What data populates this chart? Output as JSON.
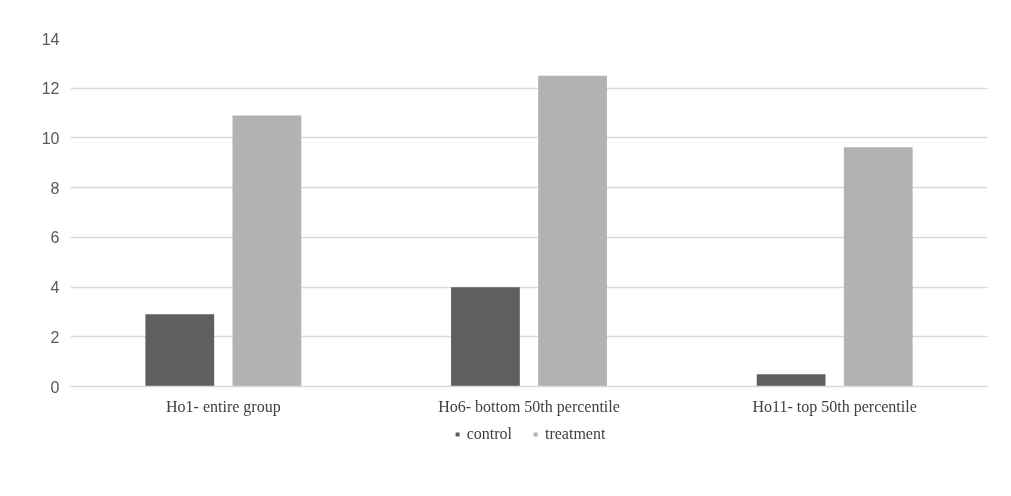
{
  "chart_data": {
    "type": "bar",
    "categories": [
      "Ho1- entire group",
      "Ho6- bottom 50th percentile",
      "Ho11- top 50th percentile"
    ],
    "series": [
      {
        "name": "control",
        "color": "#5f5f5f",
        "values": [
          2.91,
          3.99,
          0.49
        ]
      },
      {
        "name": "treatment",
        "color": "#b2b2b2",
        "values": [
          10.9,
          12.5,
          9.63
        ]
      }
    ],
    "ylim": [
      0,
      14
    ],
    "yticks": [
      0,
      2,
      4,
      6,
      8,
      10,
      12,
      14
    ],
    "grid": "y",
    "legend": "bottom"
  }
}
